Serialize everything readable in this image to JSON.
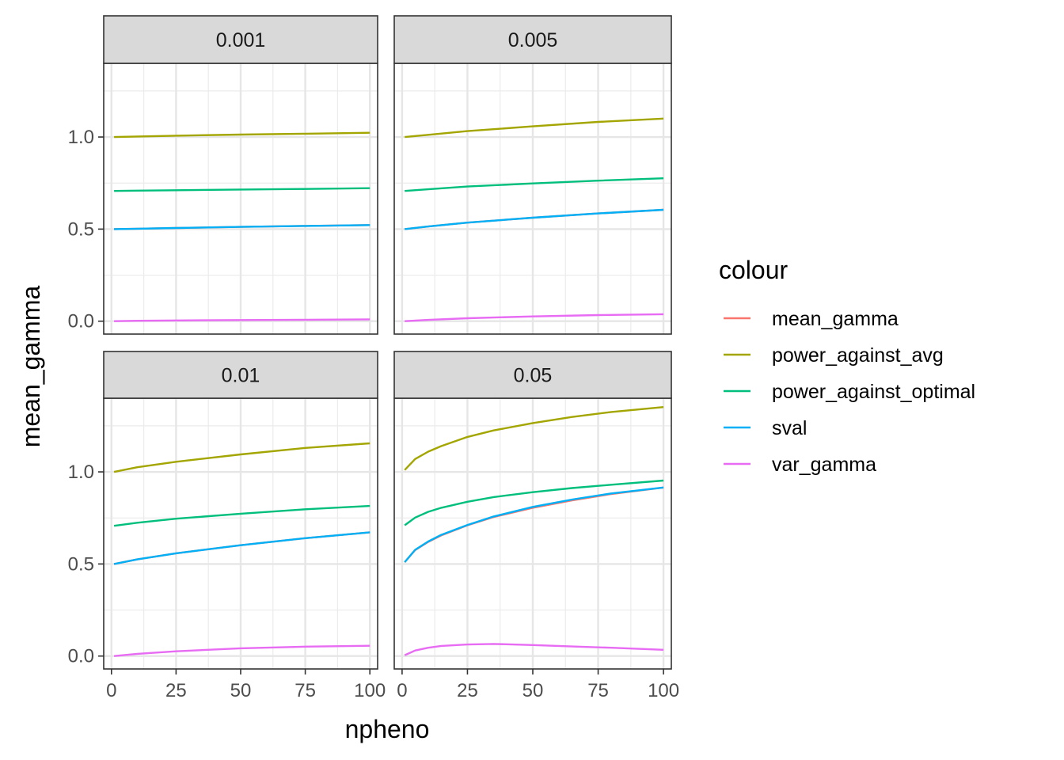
{
  "chart_data": {
    "type": "line",
    "xlabel": "npheno",
    "ylabel": "mean_gamma",
    "x_ticks": [
      0,
      25,
      50,
      75,
      100
    ],
    "y_ticks": [
      0.0,
      0.5,
      1.0
    ],
    "y_tick_labels": [
      "0.0",
      "0.5",
      "1.0"
    ],
    "x_tick_labels": [
      "0",
      "25",
      "50",
      "75",
      "100"
    ],
    "xlim": [
      -3,
      103
    ],
    "ylim": [
      -0.07,
      1.4
    ],
    "grid": true,
    "legend": {
      "title": "colour",
      "placement": "right",
      "entries": [
        "mean_gamma",
        "power_against_avg",
        "power_against_optimal",
        "sval",
        "var_gamma"
      ]
    },
    "series_colors": {
      "mean_gamma": "#F8766D",
      "power_against_avg": "#A3A500",
      "power_against_optimal": "#00BF7D",
      "sval": "#00B0F6",
      "var_gamma": "#E76BF3"
    },
    "panels": [
      {
        "label": "0.001",
        "x": [
          1,
          10,
          25,
          50,
          75,
          100
        ],
        "series": [
          {
            "name": "mean_gamma",
            "values": [
              0.5,
              0.502,
              0.506,
              0.512,
              0.517,
              0.522
            ]
          },
          {
            "name": "power_against_avg",
            "values": [
              1.0,
              1.003,
              1.007,
              1.013,
              1.018,
              1.023
            ]
          },
          {
            "name": "power_against_optimal",
            "values": [
              0.707,
              0.709,
              0.711,
              0.715,
              0.718,
              0.722
            ]
          },
          {
            "name": "sval",
            "values": [
              0.5,
              0.502,
              0.506,
              0.512,
              0.517,
              0.522
            ]
          },
          {
            "name": "var_gamma",
            "values": [
              0.0,
              0.002,
              0.004,
              0.006,
              0.008,
              0.01
            ]
          }
        ]
      },
      {
        "label": "0.005",
        "x": [
          1,
          10,
          25,
          50,
          75,
          100
        ],
        "series": [
          {
            "name": "mean_gamma",
            "values": [
              0.5,
              0.514,
              0.535,
              0.562,
              0.585,
              0.605
            ]
          },
          {
            "name": "power_against_avg",
            "values": [
              1.0,
              1.012,
              1.032,
              1.058,
              1.082,
              1.1
            ]
          },
          {
            "name": "power_against_optimal",
            "values": [
              0.707,
              0.716,
              0.731,
              0.748,
              0.763,
              0.776
            ]
          },
          {
            "name": "sval",
            "values": [
              0.5,
              0.514,
              0.535,
              0.562,
              0.585,
              0.605
            ]
          },
          {
            "name": "var_gamma",
            "values": [
              0.0,
              0.007,
              0.016,
              0.026,
              0.033,
              0.038
            ]
          }
        ]
      },
      {
        "label": "0.01",
        "x": [
          1,
          10,
          25,
          50,
          75,
          100
        ],
        "series": [
          {
            "name": "mean_gamma",
            "values": [
              0.5,
              0.525,
              0.558,
              0.602,
              0.64,
              0.672
            ]
          },
          {
            "name": "power_against_avg",
            "values": [
              1.0,
              1.025,
              1.055,
              1.095,
              1.13,
              1.155
            ]
          },
          {
            "name": "power_against_optimal",
            "values": [
              0.707,
              0.724,
              0.746,
              0.773,
              0.797,
              0.815
            ]
          },
          {
            "name": "sval",
            "values": [
              0.5,
              0.525,
              0.558,
              0.602,
              0.64,
              0.672
            ]
          },
          {
            "name": "var_gamma",
            "values": [
              0.0,
              0.012,
              0.026,
              0.042,
              0.051,
              0.056
            ]
          }
        ]
      },
      {
        "label": "0.05",
        "x": [
          1,
          5,
          10,
          15,
          25,
          35,
          50,
          65,
          80,
          100
        ],
        "series": [
          {
            "name": "mean_gamma",
            "values": [
              0.51,
              0.575,
              0.62,
              0.655,
              0.71,
              0.755,
              0.805,
              0.845,
              0.88,
              0.915
            ]
          },
          {
            "name": "power_against_avg",
            "values": [
              1.01,
              1.07,
              1.11,
              1.14,
              1.19,
              1.225,
              1.265,
              1.298,
              1.325,
              1.352
            ]
          },
          {
            "name": "power_against_optimal",
            "values": [
              0.71,
              0.752,
              0.783,
              0.805,
              0.838,
              0.863,
              0.89,
              0.912,
              0.93,
              0.953
            ]
          },
          {
            "name": "sval",
            "values": [
              0.51,
              0.577,
              0.622,
              0.658,
              0.712,
              0.758,
              0.81,
              0.85,
              0.883,
              0.915
            ]
          },
          {
            "name": "var_gamma",
            "values": [
              0.005,
              0.03,
              0.045,
              0.055,
              0.063,
              0.066,
              0.06,
              0.052,
              0.045,
              0.034
            ]
          }
        ]
      }
    ]
  }
}
